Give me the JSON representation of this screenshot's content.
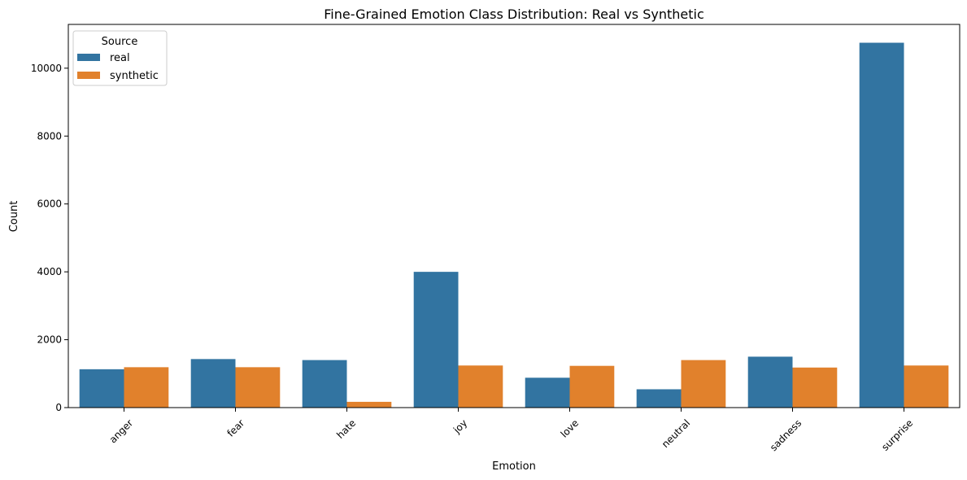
{
  "chart_data": {
    "type": "bar",
    "title": "Fine-Grained Emotion Class Distribution: Real vs Synthetic",
    "xlabel": "Emotion",
    "ylabel": "Count",
    "categories": [
      "anger",
      "fear",
      "hate",
      "joy",
      "love",
      "neutral",
      "sadness",
      "surprise"
    ],
    "series": [
      {
        "name": "real",
        "color": "#3274a1",
        "values": [
          1130,
          1430,
          1400,
          4000,
          880,
          540,
          1500,
          10750
        ]
      },
      {
        "name": "synthetic",
        "color": "#e1812c",
        "values": [
          1190,
          1190,
          170,
          1240,
          1230,
          1400,
          1180,
          1240
        ]
      }
    ],
    "ylim": [
      0,
      11290
    ],
    "yticks": [
      0,
      2000,
      4000,
      6000,
      8000,
      10000
    ],
    "ytick_labels": [
      "0",
      "2000",
      "4000",
      "6000",
      "8000",
      "10000"
    ],
    "xtick_rotation_deg": 45,
    "grid": false,
    "legend": {
      "title": "Source",
      "placement": "top-left",
      "entries": [
        "real",
        "synthetic"
      ]
    }
  }
}
